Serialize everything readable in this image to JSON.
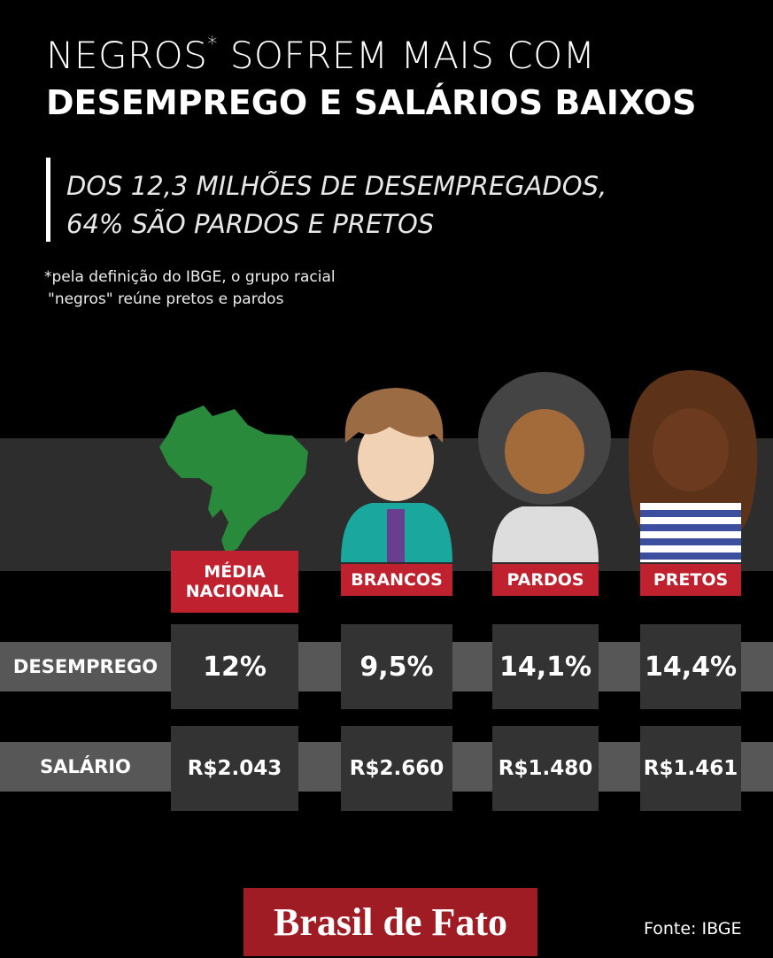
{
  "header": {
    "title_line1": "NEGROS",
    "asterisk": "*",
    "title_line1_end": "SOFREM MAIS COM",
    "title_line2": "DESEMPREGO E SALÁRIOS BAIXOS"
  },
  "subtitle": [
    "DOS 12,3 MILHÕES DE DESEMPREGADOS,",
    "64% SÃO PARDOS E PRETOS"
  ],
  "footnote": [
    "*pela definição do IBGE, o grupo racial",
    "\"negros\" reúne pretos e pardos"
  ],
  "table": {
    "columns": [
      [
        "MÉDIA",
        "NACIONAL"
      ],
      [
        "BRANCOS"
      ],
      [
        "PARDOS"
      ],
      [
        "PRETOS"
      ]
    ],
    "rows": [
      {
        "label": "DESEMPREGO",
        "cells": [
          "12%",
          "9,5%",
          "14,1%",
          "14,4%"
        ]
      },
      {
        "label": "SALÁRIO",
        "cells": [
          "R$2.043",
          "R$2.660",
          "R$1.480",
          "R$1.461"
        ]
      }
    ]
  },
  "footer": {
    "logo": "Brasil de Fato",
    "source": "Fonte: IBGE"
  }
}
